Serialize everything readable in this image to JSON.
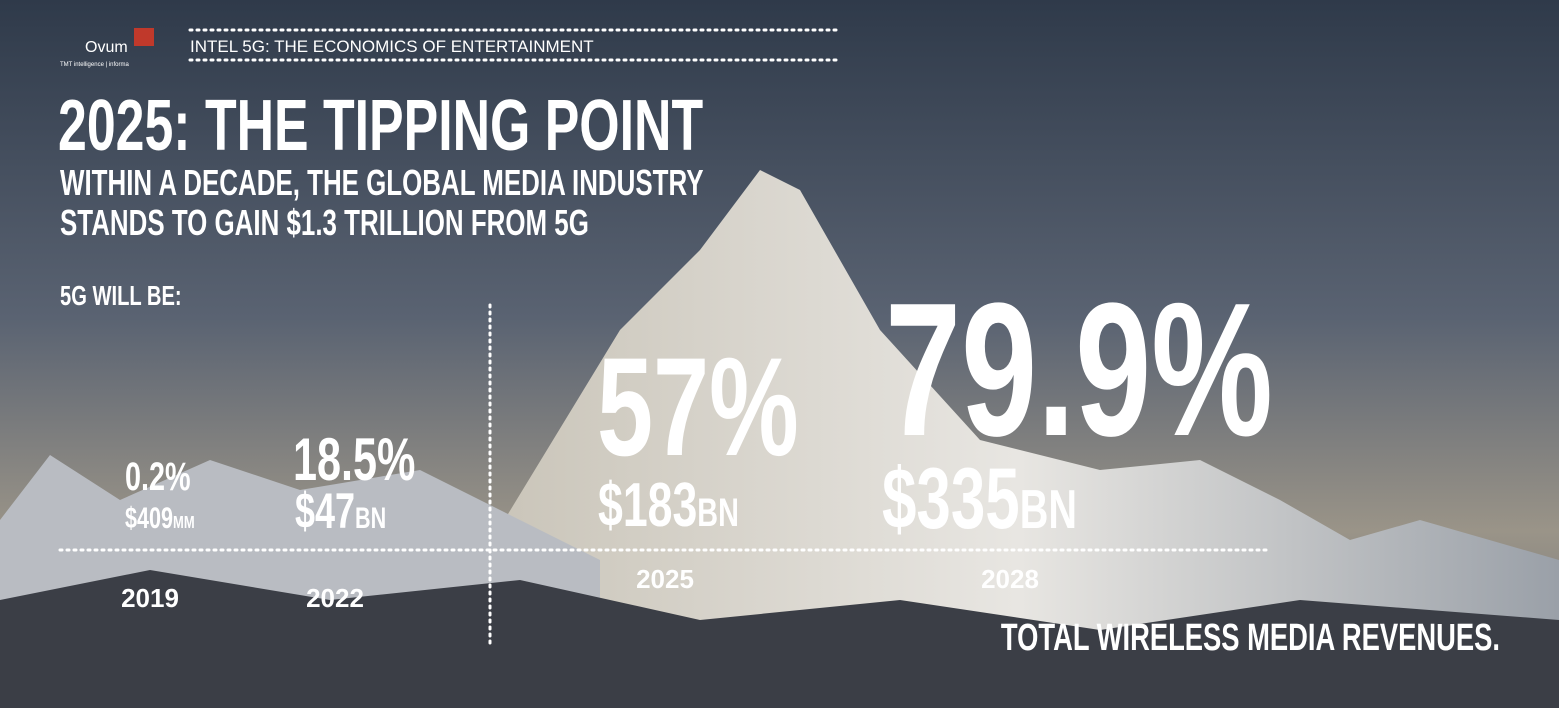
{
  "header": {
    "logo": "Ovum",
    "logo_tagline": "TMT intelligence | informa",
    "title": "INTEL 5G: THE ECONOMICS OF ENTERTAINMENT"
  },
  "title": "2025: THE TIPPING POINT",
  "subtitle": [
    "WITHIN A DECADE, THE GLOBAL MEDIA INDUSTRY",
    "STANDS TO GAIN $1.3 TRILLION FROM 5G"
  ],
  "lead": "5G WILL BE:",
  "items": [
    {
      "share": "0.2%",
      "revenue": "$409",
      "unit": "MM",
      "year": "2019"
    },
    {
      "share": "18.5%",
      "revenue": "$47",
      "unit": "BN",
      "year": "2022"
    },
    {
      "share": "57%",
      "revenue": "$183",
      "unit": "BN",
      "year": "2025"
    },
    {
      "share": "79.9%",
      "revenue": "$335",
      "unit": "BN",
      "year": "2028"
    }
  ],
  "footer": "TOTAL WIRELESS MEDIA REVENUES."
}
